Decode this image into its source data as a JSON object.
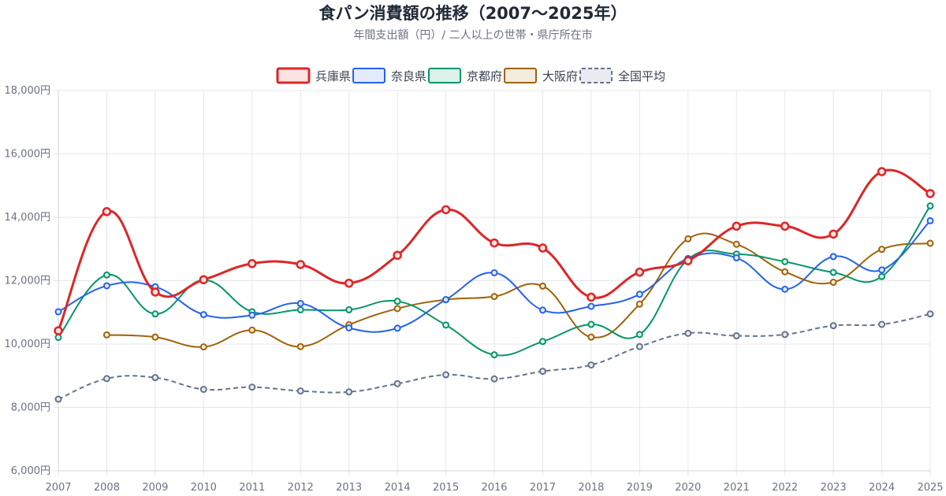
{
  "chart_data": {
    "type": "line",
    "title": "食パン消費額の推移（2007〜2025年）",
    "subtitle": "年間支出額（円）/ 二人以上の世帯・県庁所在市",
    "x": [
      "2007",
      "2008",
      "2009",
      "2010",
      "2011",
      "2012",
      "2013",
      "2014",
      "2015",
      "2016",
      "2017",
      "2018",
      "2019",
      "2020",
      "2021",
      "2022",
      "2023",
      "2024",
      "2025"
    ],
    "y_ticks": [
      "6,000円",
      "8,000円",
      "10,000円",
      "12,000円",
      "14,000円",
      "16,000円",
      "18,000円"
    ],
    "ylim": [
      6000,
      18000
    ],
    "grid": true,
    "legend_position": "top",
    "series": [
      {
        "name": "兵庫県",
        "color": "#dc2626",
        "fill": "#fde2e2",
        "dashed": false,
        "bold": true,
        "values": [
          10420,
          14180,
          11640,
          12030,
          12540,
          12510,
          11920,
          12800,
          14240,
          13190,
          13030,
          11480,
          12270,
          12630,
          13720,
          13720,
          13470,
          15440,
          14750
        ]
      },
      {
        "name": "奈良県",
        "color": "#2563eb",
        "fill": "#e3ebfd",
        "dashed": false,
        "bold": false,
        "values": [
          11020,
          11840,
          11810,
          10930,
          10910,
          11280,
          10510,
          10500,
          11400,
          12250,
          11070,
          11190,
          11570,
          12700,
          12720,
          11730,
          12760,
          12340,
          13890
        ]
      },
      {
        "name": "京都府",
        "color": "#059669",
        "fill": "#dcf2ea",
        "dashed": false,
        "bold": false,
        "values": [
          10210,
          12180,
          10950,
          12020,
          11020,
          11080,
          11080,
          11350,
          10600,
          9660,
          10080,
          10620,
          10300,
          12670,
          12840,
          12600,
          12260,
          12130,
          14360
        ]
      },
      {
        "name": "大阪府",
        "color": "#a16207",
        "fill": "#f4ecdc",
        "dashed": false,
        "bold": false,
        "values": [
          null,
          10290,
          10220,
          9910,
          10440,
          9920,
          10610,
          11120,
          11400,
          11500,
          11830,
          10220,
          11260,
          13320,
          13150,
          12280,
          11950,
          12990,
          13180
        ]
      },
      {
        "name": "全国平均",
        "color": "#64748b",
        "fill": "#e8ebf0",
        "dashed": true,
        "bold": false,
        "values": [
          8260,
          8910,
          8940,
          8570,
          8640,
          8520,
          8490,
          8750,
          9030,
          8900,
          9140,
          9340,
          9920,
          10340,
          10260,
          10300,
          10580,
          10620,
          10950
        ]
      }
    ]
  }
}
